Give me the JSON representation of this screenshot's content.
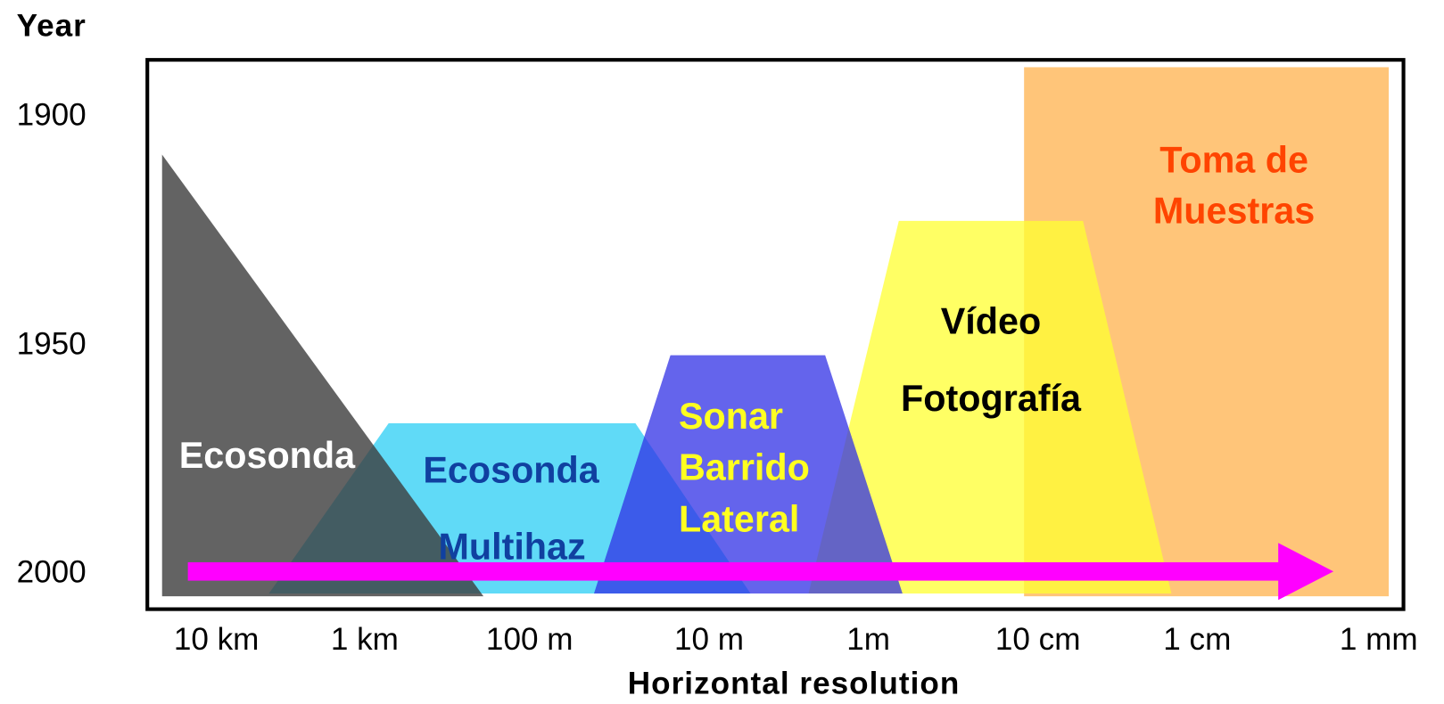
{
  "axes": {
    "y_title": "Year",
    "y_labels": [
      "1900",
      "1950",
      "2000"
    ],
    "x_labels": [
      "10 km",
      "1 km",
      "100 m",
      "10 m",
      "1m",
      "10 cm",
      "1 cm",
      "1 mm"
    ],
    "x_title": "Horizontal resolution"
  },
  "regions": [
    {
      "lines": [
        "Ecosonda"
      ]
    },
    {
      "lines": [
        "Ecosonda",
        "Multihaz"
      ]
    },
    {
      "lines": [
        "Sonar",
        "Barrido",
        "Lateral"
      ]
    },
    {
      "lines": [
        "Vídeo",
        "Fotografía"
      ]
    },
    {
      "lines": [
        "Toma de",
        "Muestras"
      ]
    }
  ]
}
